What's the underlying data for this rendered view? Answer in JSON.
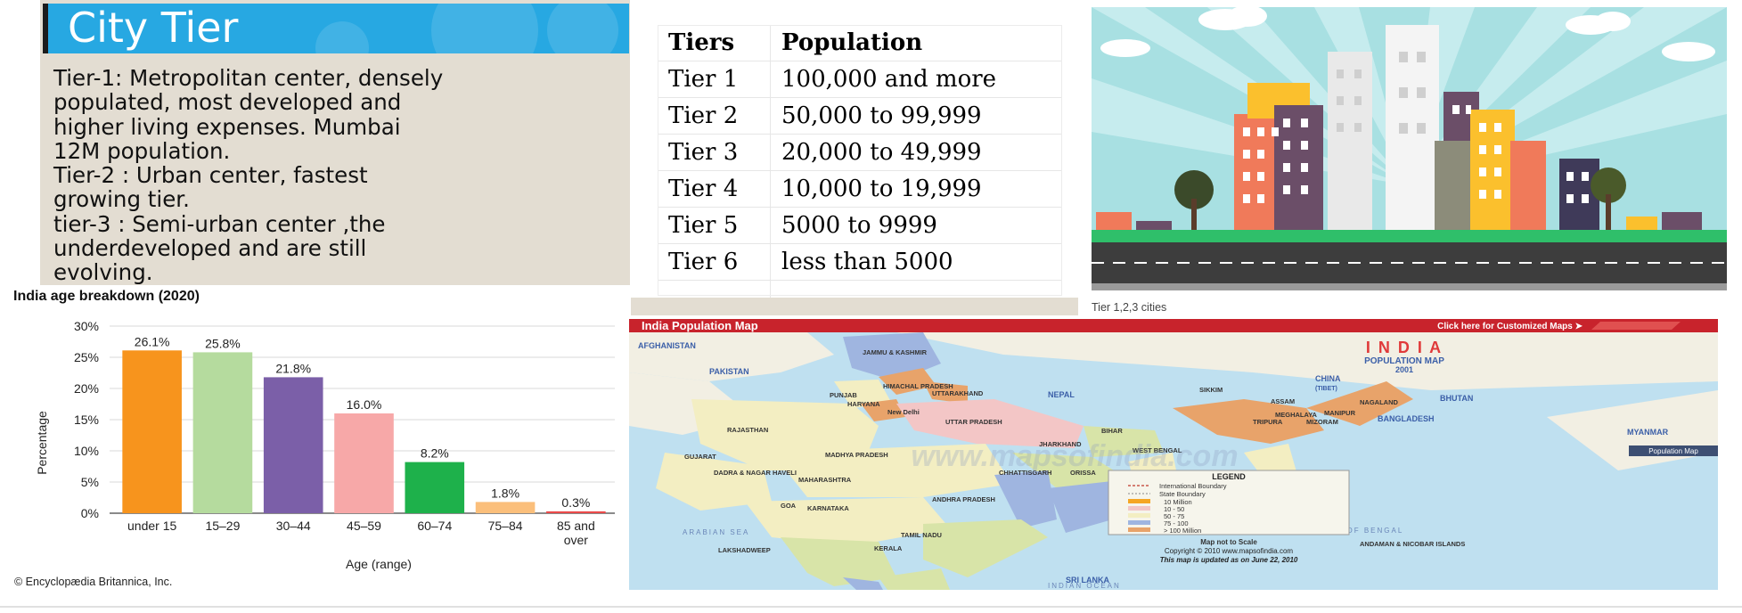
{
  "tier_panel": {
    "title": "City Tier",
    "lines": [
      "Tier-1: Metropolitan center, densely",
      "populated, most developed and",
      "higher living expenses. Mumbai",
      "12M population.",
      "Tier-2 : Urban center, fastest",
      "growing tier.",
      "tier-3 : Semi-urban center ,the",
      "underdeveloped and are still",
      "evolving."
    ]
  },
  "tier_table": {
    "headers": [
      "Tiers",
      "Population"
    ],
    "rows": [
      [
        "Tier 1",
        "100,000 and more"
      ],
      [
        "Tier 2",
        "50,000 to 99,999"
      ],
      [
        "Tier 3",
        "20,000 to 49,999"
      ],
      [
        "Tier 4",
        "10,000 to 19,999"
      ],
      [
        "Tier 5",
        "5000 to 9999"
      ],
      [
        "Tier 6",
        "less than 5000"
      ]
    ]
  },
  "city_caption": "Tier 1,2,3 cities",
  "britannica_credit": "© Encyclopædia Britannica, Inc.",
  "chart_data": {
    "type": "bar",
    "title": "India age breakdown (2020)",
    "xlabel": "Age (range)",
    "ylabel": "Percentage",
    "categories": [
      "under 15",
      "15–29",
      "30–44",
      "45–59",
      "60–74",
      "75–84",
      "85 and over"
    ],
    "values": [
      26.1,
      25.8,
      21.8,
      16.0,
      8.2,
      1.8,
      0.3
    ],
    "value_labels": [
      "26.1%",
      "25.8%",
      "21.8%",
      "16.0%",
      "8.2%",
      "1.8%",
      "0.3%"
    ],
    "colors": [
      "#f7941d",
      "#b5db9e",
      "#7b5fa8",
      "#f7a8a8",
      "#1eb14b",
      "#fbbf7b",
      "#ea4a4a"
    ],
    "ylim": [
      0,
      30
    ],
    "yticks": [
      "0%",
      "5%",
      "10%",
      "15%",
      "20%",
      "25%",
      "30%"
    ],
    "grid": true
  },
  "map": {
    "header_title": "India Population Map",
    "header_link": "Click here for Customized Maps ➤",
    "title": "I N D I A",
    "subtitle": "POPULATION MAP",
    "year": "2001",
    "countries": [
      "AFGHANISTAN",
      "PAKISTAN",
      "CHINA",
      "(TIBET)",
      "NEPAL",
      "BHUTAN",
      "BANGLADESH",
      "MYANMAR",
      "SRI LANKA"
    ],
    "states": [
      "JAMMU & KASHMIR",
      "HIMACHAL PRADESH",
      "PUNJAB",
      "HARYANA",
      "UTTARAKHAND",
      "New Delhi",
      "UTTAR PRADESH",
      "RAJASTHAN",
      "BIHAR",
      "SIKKIM",
      "ASSAM",
      "NAGALAND",
      "MEGHALAYA",
      "MANIPUR",
      "TRIPURA",
      "MIZORAM",
      "GUJARAT",
      "MADHYA PRADESH",
      "JHARKHAND",
      "WEST BENGAL",
      "CHHATTISGARH",
      "ORISSA",
      "DADRA & NAGAR HAVELI",
      "MAHARASHTRA",
      "GOA",
      "KARNATAKA",
      "ANDHRA PRADESH",
      "TAMIL NADU",
      "KERALA",
      "LAKSHADWEEP",
      "ANDAMAN & NICOBAR ISLANDS"
    ],
    "seas": [
      "ARABIAN SEA",
      "BAY OF BENGAL",
      "INDIAN OCEAN"
    ],
    "legend_title": "LEGEND",
    "legend_items": [
      "International Boundary",
      "State Boundary",
      "10 Million",
      "10 - 50",
      "50 - 75",
      "75 - 100",
      "> 100 Million"
    ],
    "legend_colors": [
      "#f5a623",
      "#f3c6c6",
      "#f3eec2",
      "#9fb5e0",
      "#e8a36a"
    ],
    "scale_note": "Map not to Scale",
    "copyright": "Copyright © 2010 www.mapsofindia.com",
    "updated": "This map is updated as on June 22, 2010",
    "side_tag": "Population Map",
    "watermark": "www.mapsofindia.com"
  }
}
